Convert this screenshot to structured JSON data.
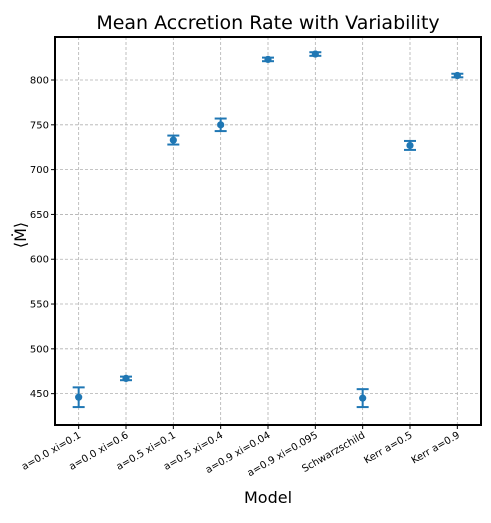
{
  "chart_data": {
    "type": "scatter",
    "title": "Mean Accretion Rate with Variability",
    "xlabel": "Model",
    "ylabel": "⟨Ṁ⟩",
    "categories": [
      "a=0.0 xi=0.1",
      "a=0.0 xi=0.6",
      "a=0.5 xi=0.1",
      "a=0.5 xi=0.4",
      "a=0.9 xi=0.04",
      "a=0.9 xi=0.095",
      "Schwarzschild",
      "Kerr a=0.5",
      "Kerr a=0.9"
    ],
    "values": [
      446,
      467,
      733,
      750,
      823,
      829,
      445,
      727,
      805
    ],
    "errors": [
      11,
      2,
      5,
      7,
      2,
      2,
      10,
      5,
      2
    ],
    "ylim": [
      415,
      848
    ],
    "yticks": [
      450,
      500,
      550,
      600,
      650,
      700,
      750,
      800
    ],
    "grid": true,
    "color": "#1f77b4"
  }
}
